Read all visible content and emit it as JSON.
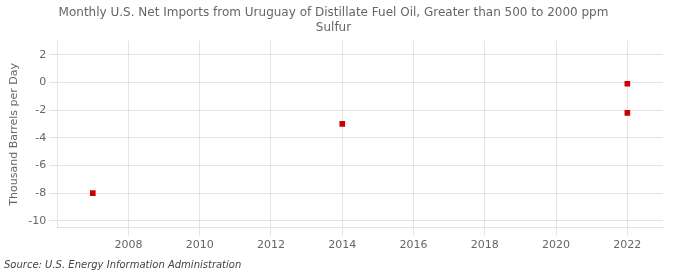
{
  "chart_data": {
    "type": "scatter",
    "title": "Monthly U.S. Net Imports from Uruguay of Distillate Fuel Oil, Greater than 500 to 2000 ppm\nSulfur",
    "ylabel": "Thousand Barrels per Day",
    "source": "Source: U.S. Energy Information Administration",
    "x": [
      2007,
      2014,
      2022,
      2022
    ],
    "values": [
      -8,
      -3,
      -0.1,
      -2.2
    ],
    "color": "#cc0000",
    "marker": "square",
    "xlim": [
      2006.0,
      2023.0
    ],
    "ylim": [
      -10.5,
      3.0
    ],
    "xticks": [
      2008,
      2010,
      2012,
      2014,
      2016,
      2018,
      2020,
      2022
    ],
    "yticks": [
      -10,
      -8,
      -6,
      -4,
      -2,
      0,
      2
    ],
    "grid": true
  }
}
